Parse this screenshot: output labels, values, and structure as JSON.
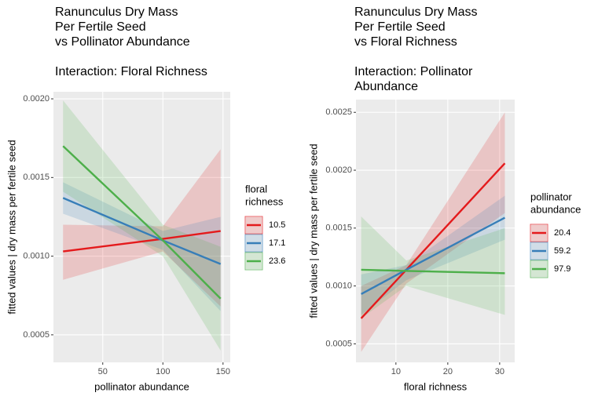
{
  "chart_data": [
    {
      "type": "line",
      "title": [
        "Ranunculus Dry Mass",
        "Per Fertile Seed",
        "vs Pollinator Abundance"
      ],
      "subtitle": [
        "Interaction: Floral Richness"
      ],
      "x_label": "pollinator abundance",
      "y_label": "fitted values | dry mass per fertile seed",
      "x": [
        17,
        100,
        148
      ],
      "xlim": [
        9,
        156
      ],
      "ylim": [
        0.000325,
        0.002045
      ],
      "xticks": [
        50,
        100,
        150
      ],
      "yticks": [
        {
          "value": 0.0005,
          "label": "0.0005"
        },
        {
          "value": 0.001,
          "label": "0.0010"
        },
        {
          "value": 0.0015,
          "label": "0.0015"
        },
        {
          "value": 0.002,
          "label": "0.0020"
        }
      ],
      "grid": true,
      "legend_title": [
        "floral",
        "richness"
      ],
      "series": [
        {
          "name": "10.5",
          "color": "#e41a1c",
          "values": [
            0.00103,
            0.00111,
            0.00116
          ],
          "lower": [
            0.00085,
            0.00103,
            0.00068
          ],
          "upper": [
            0.0012,
            0.00119,
            0.00168
          ]
        },
        {
          "name": "17.1",
          "color": "#377eb8",
          "values": [
            0.00137,
            0.0011,
            0.00095
          ],
          "lower": [
            0.00127,
            0.00104,
            0.00065
          ],
          "upper": [
            0.00147,
            0.00116,
            0.00125
          ]
        },
        {
          "name": "23.6",
          "color": "#4daf4a",
          "values": [
            0.0017,
            0.0011,
            0.00073
          ],
          "lower": [
            0.00141,
            0.001,
            0.0004
          ],
          "upper": [
            0.00199,
            0.0012,
            0.00106
          ]
        }
      ]
    },
    {
      "type": "line",
      "title": [
        "Ranunculus Dry Mass",
        "Per Fertile Seed",
        "vs Floral Richness"
      ],
      "subtitle": [
        "Interaction: Pollinator",
        "Abundance"
      ],
      "x_label": "floral richness",
      "y_label": "fitted values | dry mass per fertile seed",
      "x": [
        3.3,
        12,
        31
      ],
      "xlim": [
        2.3,
        32.9
      ],
      "ylim": [
        0.00034,
        0.00261
      ],
      "xticks": [
        10,
        20,
        30
      ],
      "yticks": [
        {
          "value": 0.0005,
          "label": "0.0005"
        },
        {
          "value": 0.001,
          "label": "0.0010"
        },
        {
          "value": 0.0015,
          "label": "0.0015"
        },
        {
          "value": 0.002,
          "label": "0.0020"
        },
        {
          "value": 0.0025,
          "label": "0.0025"
        }
      ],
      "grid": true,
      "legend_title": [
        "pollinator",
        "abundance"
      ],
      "series": [
        {
          "name": "20.4",
          "color": "#e41a1c",
          "values": [
            0.00072,
            0.00114,
            0.00206
          ],
          "lower": [
            0.00043,
            0.00102,
            0.00163
          ],
          "upper": [
            0.001,
            0.00118,
            0.0025
          ]
        },
        {
          "name": "59.2",
          "color": "#377eb8",
          "values": [
            0.00093,
            0.00114,
            0.00159
          ],
          "lower": [
            0.00075,
            0.00105,
            0.0014
          ],
          "upper": [
            0.0011,
            0.00118,
            0.00178
          ]
        },
        {
          "name": "97.9",
          "color": "#4daf4a",
          "values": [
            0.00114,
            0.00113,
            0.00111
          ],
          "lower": [
            0.00072,
            0.001,
            0.00075
          ],
          "upper": [
            0.0016,
            0.00122,
            0.0015
          ]
        }
      ]
    }
  ]
}
